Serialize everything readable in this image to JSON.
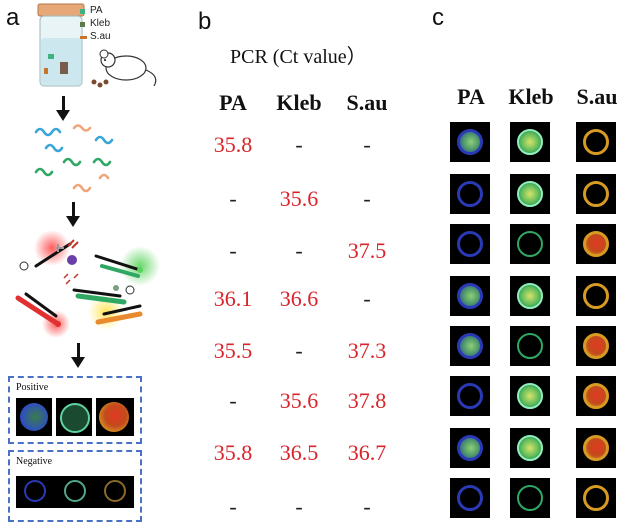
{
  "panels": {
    "a": "a",
    "b": "b",
    "c": "c"
  },
  "legend": [
    {
      "label": "PA",
      "color": "#3fb27f"
    },
    {
      "label": "Kleb",
      "color": "#5d7a4a"
    },
    {
      "label": "S.au",
      "color": "#c8742c"
    }
  ],
  "boxes": {
    "positive": "Positive",
    "negative": "Negative"
  },
  "table": {
    "title": "PCR (Ct value）",
    "headers": [
      "PA",
      "Kleb",
      "S.au"
    ],
    "rows": [
      [
        "35.8",
        "-",
        "-"
      ],
      [
        "-",
        "35.6",
        "-"
      ],
      [
        "-",
        "-",
        "37.5"
      ],
      [
        "36.1",
        "36.6",
        "-"
      ],
      [
        "35.5",
        "-",
        "37.3"
      ],
      [
        "-",
        "35.6",
        "37.8"
      ],
      [
        "35.8",
        "36.5",
        "36.7"
      ],
      [
        "-",
        "-",
        "-"
      ]
    ]
  },
  "images": {
    "headers": [
      "PA",
      "Kleb",
      "S.au"
    ],
    "grid": [
      [
        1,
        1,
        0
      ],
      [
        0,
        1,
        0
      ],
      [
        0,
        0,
        1
      ],
      [
        1,
        1,
        0
      ],
      [
        1,
        0,
        1
      ],
      [
        0,
        1,
        1
      ],
      [
        1,
        1,
        1
      ],
      [
        0,
        0,
        0
      ]
    ]
  },
  "colors": {
    "red": "#d8242a",
    "pa": "#2a39b5",
    "kleb": "#2fa864",
    "sau": "#d79a22",
    "dashed_box": "#4a72c4"
  }
}
